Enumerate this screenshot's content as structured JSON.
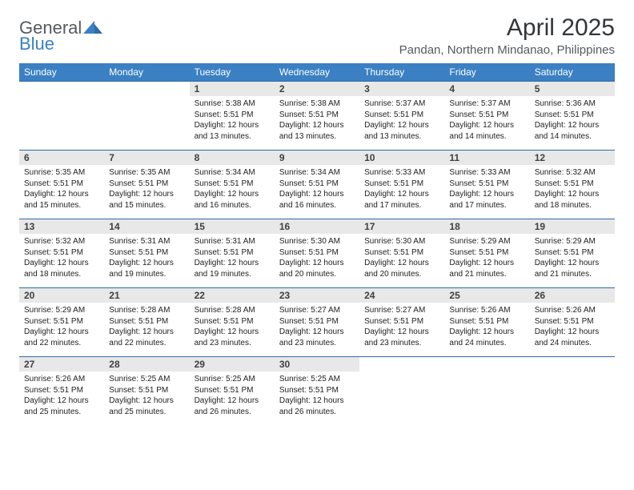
{
  "logo": {
    "line1": "General",
    "line2": "Blue"
  },
  "title": {
    "month": "April 2025",
    "location": "Pandan, Northern Mindanao, Philippines"
  },
  "colors": {
    "header_bg": "#3a80c3",
    "header_text": "#ffffff",
    "daynum_bg": "#e8e8e8",
    "row_border": "#2f6ca8",
    "body_text": "#222222",
    "logo_grey": "#555a5f",
    "logo_blue": "#3a80c3"
  },
  "weekdays": [
    "Sunday",
    "Monday",
    "Tuesday",
    "Wednesday",
    "Thursday",
    "Friday",
    "Saturday"
  ],
  "layout": {
    "columns": 7,
    "rows": 5,
    "first_weekday_index": 2,
    "days_in_month": 30
  },
  "days": {
    "1": {
      "sunrise": "Sunrise: 5:38 AM",
      "sunset": "Sunset: 5:51 PM",
      "daylight1": "Daylight: 12 hours",
      "daylight2": "and 13 minutes."
    },
    "2": {
      "sunrise": "Sunrise: 5:38 AM",
      "sunset": "Sunset: 5:51 PM",
      "daylight1": "Daylight: 12 hours",
      "daylight2": "and 13 minutes."
    },
    "3": {
      "sunrise": "Sunrise: 5:37 AM",
      "sunset": "Sunset: 5:51 PM",
      "daylight1": "Daylight: 12 hours",
      "daylight2": "and 13 minutes."
    },
    "4": {
      "sunrise": "Sunrise: 5:37 AM",
      "sunset": "Sunset: 5:51 PM",
      "daylight1": "Daylight: 12 hours",
      "daylight2": "and 14 minutes."
    },
    "5": {
      "sunrise": "Sunrise: 5:36 AM",
      "sunset": "Sunset: 5:51 PM",
      "daylight1": "Daylight: 12 hours",
      "daylight2": "and 14 minutes."
    },
    "6": {
      "sunrise": "Sunrise: 5:35 AM",
      "sunset": "Sunset: 5:51 PM",
      "daylight1": "Daylight: 12 hours",
      "daylight2": "and 15 minutes."
    },
    "7": {
      "sunrise": "Sunrise: 5:35 AM",
      "sunset": "Sunset: 5:51 PM",
      "daylight1": "Daylight: 12 hours",
      "daylight2": "and 15 minutes."
    },
    "8": {
      "sunrise": "Sunrise: 5:34 AM",
      "sunset": "Sunset: 5:51 PM",
      "daylight1": "Daylight: 12 hours",
      "daylight2": "and 16 minutes."
    },
    "9": {
      "sunrise": "Sunrise: 5:34 AM",
      "sunset": "Sunset: 5:51 PM",
      "daylight1": "Daylight: 12 hours",
      "daylight2": "and 16 minutes."
    },
    "10": {
      "sunrise": "Sunrise: 5:33 AM",
      "sunset": "Sunset: 5:51 PM",
      "daylight1": "Daylight: 12 hours",
      "daylight2": "and 17 minutes."
    },
    "11": {
      "sunrise": "Sunrise: 5:33 AM",
      "sunset": "Sunset: 5:51 PM",
      "daylight1": "Daylight: 12 hours",
      "daylight2": "and 17 minutes."
    },
    "12": {
      "sunrise": "Sunrise: 5:32 AM",
      "sunset": "Sunset: 5:51 PM",
      "daylight1": "Daylight: 12 hours",
      "daylight2": "and 18 minutes."
    },
    "13": {
      "sunrise": "Sunrise: 5:32 AM",
      "sunset": "Sunset: 5:51 PM",
      "daylight1": "Daylight: 12 hours",
      "daylight2": "and 18 minutes."
    },
    "14": {
      "sunrise": "Sunrise: 5:31 AM",
      "sunset": "Sunset: 5:51 PM",
      "daylight1": "Daylight: 12 hours",
      "daylight2": "and 19 minutes."
    },
    "15": {
      "sunrise": "Sunrise: 5:31 AM",
      "sunset": "Sunset: 5:51 PM",
      "daylight1": "Daylight: 12 hours",
      "daylight2": "and 19 minutes."
    },
    "16": {
      "sunrise": "Sunrise: 5:30 AM",
      "sunset": "Sunset: 5:51 PM",
      "daylight1": "Daylight: 12 hours",
      "daylight2": "and 20 minutes."
    },
    "17": {
      "sunrise": "Sunrise: 5:30 AM",
      "sunset": "Sunset: 5:51 PM",
      "daylight1": "Daylight: 12 hours",
      "daylight2": "and 20 minutes."
    },
    "18": {
      "sunrise": "Sunrise: 5:29 AM",
      "sunset": "Sunset: 5:51 PM",
      "daylight1": "Daylight: 12 hours",
      "daylight2": "and 21 minutes."
    },
    "19": {
      "sunrise": "Sunrise: 5:29 AM",
      "sunset": "Sunset: 5:51 PM",
      "daylight1": "Daylight: 12 hours",
      "daylight2": "and 21 minutes."
    },
    "20": {
      "sunrise": "Sunrise: 5:29 AM",
      "sunset": "Sunset: 5:51 PM",
      "daylight1": "Daylight: 12 hours",
      "daylight2": "and 22 minutes."
    },
    "21": {
      "sunrise": "Sunrise: 5:28 AM",
      "sunset": "Sunset: 5:51 PM",
      "daylight1": "Daylight: 12 hours",
      "daylight2": "and 22 minutes."
    },
    "22": {
      "sunrise": "Sunrise: 5:28 AM",
      "sunset": "Sunset: 5:51 PM",
      "daylight1": "Daylight: 12 hours",
      "daylight2": "and 23 minutes."
    },
    "23": {
      "sunrise": "Sunrise: 5:27 AM",
      "sunset": "Sunset: 5:51 PM",
      "daylight1": "Daylight: 12 hours",
      "daylight2": "and 23 minutes."
    },
    "24": {
      "sunrise": "Sunrise: 5:27 AM",
      "sunset": "Sunset: 5:51 PM",
      "daylight1": "Daylight: 12 hours",
      "daylight2": "and 23 minutes."
    },
    "25": {
      "sunrise": "Sunrise: 5:26 AM",
      "sunset": "Sunset: 5:51 PM",
      "daylight1": "Daylight: 12 hours",
      "daylight2": "and 24 minutes."
    },
    "26": {
      "sunrise": "Sunrise: 5:26 AM",
      "sunset": "Sunset: 5:51 PM",
      "daylight1": "Daylight: 12 hours",
      "daylight2": "and 24 minutes."
    },
    "27": {
      "sunrise": "Sunrise: 5:26 AM",
      "sunset": "Sunset: 5:51 PM",
      "daylight1": "Daylight: 12 hours",
      "daylight2": "and 25 minutes."
    },
    "28": {
      "sunrise": "Sunrise: 5:25 AM",
      "sunset": "Sunset: 5:51 PM",
      "daylight1": "Daylight: 12 hours",
      "daylight2": "and 25 minutes."
    },
    "29": {
      "sunrise": "Sunrise: 5:25 AM",
      "sunset": "Sunset: 5:51 PM",
      "daylight1": "Daylight: 12 hours",
      "daylight2": "and 26 minutes."
    },
    "30": {
      "sunrise": "Sunrise: 5:25 AM",
      "sunset": "Sunset: 5:51 PM",
      "daylight1": "Daylight: 12 hours",
      "daylight2": "and 26 minutes."
    }
  }
}
